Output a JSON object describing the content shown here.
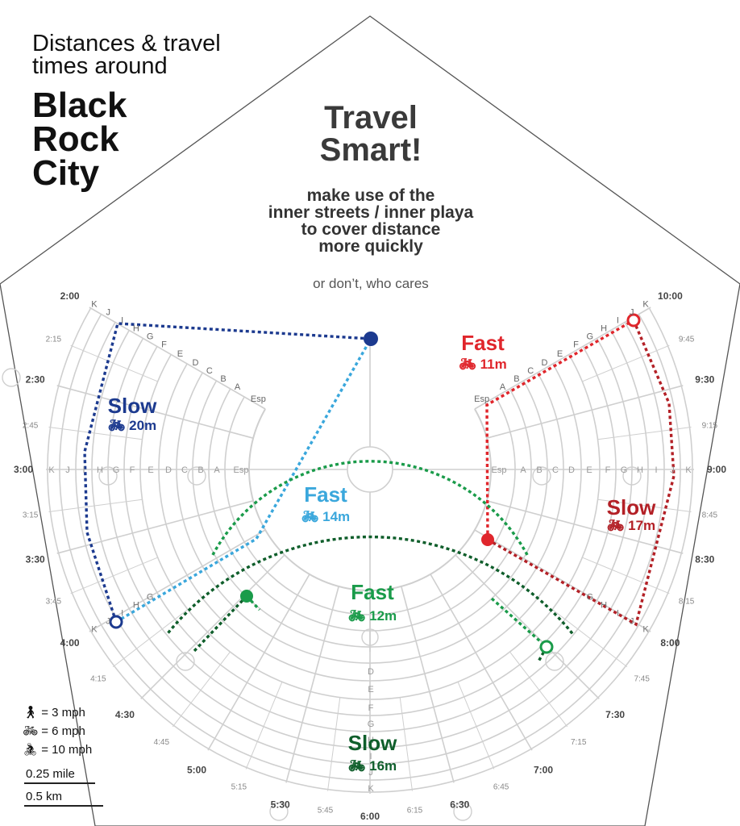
{
  "header": {
    "subtitle_line1": "Distances & travel",
    "subtitle_line2": "times around",
    "title_line1": "Black",
    "title_line2": "Rock",
    "title_line3": "City"
  },
  "center_text": {
    "travel_line1": "Travel",
    "travel_line2": "Smart!",
    "tip_line1": "make use of the",
    "tip_line2": "inner streets / inner playa",
    "tip_line3": "to cover distance",
    "tip_line4": "more quickly",
    "aside": "or don’t, who cares"
  },
  "colors": {
    "dark_blue": "#1c3a8f",
    "light_blue": "#3aa7dc",
    "red": "#e0262c",
    "green": "#1a9b4a",
    "dark_green": "#0f5e2b",
    "street_gray": "#cfcfcf"
  },
  "routes": [
    {
      "id": "slow-blue",
      "label": "Slow",
      "time": "20m",
      "mode_icon": "bicycle-icon",
      "color": "#1c3a8f"
    },
    {
      "id": "fast-blue",
      "label": "Fast",
      "time": "14m",
      "mode_icon": "bicycle-icon",
      "color": "#3aa7dc"
    },
    {
      "id": "fast-red",
      "label": "Fast",
      "time": "11m",
      "mode_icon": "bicycle-icon",
      "color": "#e0262c"
    },
    {
      "id": "slow-red",
      "label": "Slow",
      "time": "17m",
      "mode_icon": "bicycle-icon",
      "color": "#b32026"
    },
    {
      "id": "fast-green",
      "label": "Fast",
      "time": "12m",
      "mode_icon": "bicycle-icon",
      "color": "#1a9b4a"
    },
    {
      "id": "slow-green",
      "label": "Slow",
      "time": "16m",
      "mode_icon": "bicycle-icon",
      "color": "#0f5e2b"
    }
  ],
  "legend": {
    "walk": "= 3 mph",
    "bike": "= 6 mph",
    "fast_bike": "= 10 mph",
    "scale_mile": "0.25 mile",
    "scale_km": "0.5 km"
  },
  "clock_labels_major": [
    "10:00",
    "9:30",
    "9:00",
    "8:30",
    "8:00",
    "7:30",
    "7:00",
    "6:30",
    "6:00",
    "5:30",
    "5:00",
    "4:30",
    "4:00",
    "3:30",
    "3:00",
    "2:30",
    "2:00"
  ],
  "clock_labels_minor": [
    "9:45",
    "9:15",
    "8:45",
    "8:15",
    "7:45",
    "7:15",
    "6:45",
    "6:15",
    "5:45",
    "5:15",
    "4:45",
    "4:15",
    "3:45",
    "3:15",
    "2:45",
    "2:15"
  ],
  "street_letters": [
    "Esp",
    "A",
    "B",
    "C",
    "D",
    "E",
    "F",
    "G",
    "H",
    "I",
    "J",
    "K"
  ]
}
